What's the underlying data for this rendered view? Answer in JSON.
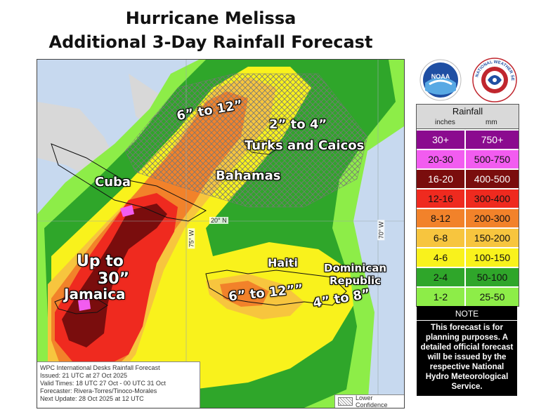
{
  "title": {
    "line1": "Hurricane Melissa",
    "line2": "Additional 3-Day Rainfall Forecast"
  },
  "map_labels": {
    "cuba": "Cuba",
    "bahamas": "Bahamas",
    "turks": "Turks and Caicos",
    "haiti": "Haiti",
    "dominican_1": "Dominican",
    "dominican_2": "Republic",
    "jamaica": "Jamaica",
    "up_to_1": "Up to",
    "up_to_2": "30”",
    "r_6_12_north": "6” to 12”",
    "r_2_4": "2” to 4”",
    "r_6_12_haiti": "6” to 12””",
    "r_4_8": "4” to 8”"
  },
  "coords": {
    "lat_20": "20° N",
    "lon_75": "75° W",
    "lon_70": "70° W"
  },
  "info": {
    "line1": "WPC International Desks Rainfall Forecast",
    "line2": "Issued: 21 UTC at 27 Oct 2025",
    "line3": "Valid Times: 18 UTC 27 Oct - 00 UTC 31 Oct",
    "line4": "Forecaster: Rivera-Torres/Tinoco-Morales",
    "line5": "Next Update: 28 Oct 2025 at 12 UTC"
  },
  "lower_confidence": "Lower Confidence",
  "logos": {
    "noaa": "NOAA",
    "nws": "NATIONAL WEATHER SERVICE"
  },
  "legend": {
    "title": "Rainfall",
    "inches": "inches",
    "mm": "mm",
    "rows": [
      {
        "in": "30+",
        "mm": "750+",
        "color": "#8b0b8f",
        "text_color": "#ffffff"
      },
      {
        "in": "20-30",
        "mm": "500-750",
        "color": "#f25cf0",
        "text_color": "#111111"
      },
      {
        "in": "16-20",
        "mm": "400-500",
        "color": "#7a0d0d",
        "text_color": "#ffffff"
      },
      {
        "in": "12-16",
        "mm": "300-400",
        "color": "#ef2a1f",
        "text_color": "#111111"
      },
      {
        "in": "8-12",
        "mm": "200-300",
        "color": "#f2822a",
        "text_color": "#111111"
      },
      {
        "in": "6-8",
        "mm": "150-200",
        "color": "#f7c53e",
        "text_color": "#111111"
      },
      {
        "in": "4-6",
        "mm": "100-150",
        "color": "#f9f21c",
        "text_color": "#111111"
      },
      {
        "in": "2-4",
        "mm": "50-100",
        "color": "#2fa62a",
        "text_color": "#111111"
      },
      {
        "in": "1-2",
        "mm": "25-50",
        "color": "#8ded48",
        "text_color": "#111111"
      }
    ]
  },
  "note": {
    "title": "NOTE",
    "body": "This forecast is for planning purposes. A detailed official forecast will be issued by the respective National Hydro Meteorological Service."
  }
}
